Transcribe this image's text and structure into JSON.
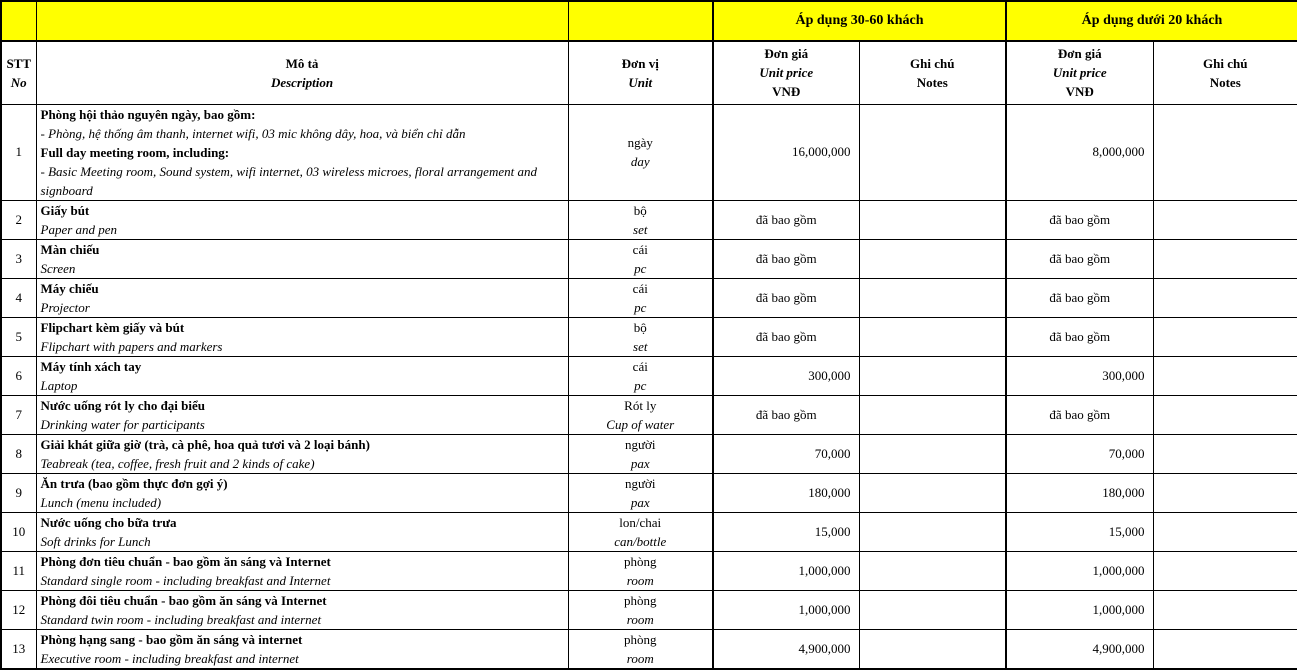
{
  "colors": {
    "header_bg": "#FFFF00",
    "border": "#000000",
    "text": "#000000"
  },
  "header": {
    "stt": "STT",
    "no": "No",
    "mo_ta": "Mô tả",
    "description": "Description",
    "don_vi": "Đơn vị",
    "unit": "Unit",
    "group_30_60": "Áp dụng  30-60 khách",
    "group_under_20": "Áp dụng dưới 20 khách",
    "don_gia": "Đơn giá",
    "unit_price": "Unit price",
    "vnd": "VNĐ",
    "ghi_chu": "Ghi chú",
    "notes": "Notes"
  },
  "rows": [
    {
      "no": "1",
      "desc_lines": [
        {
          "style": "bold",
          "text": "Phòng hội thảo nguyên ngày, bao gồm:"
        },
        {
          "style": "italic",
          "text": "- Phòng, hệ thống âm thanh, internet wifi, 03 mic không dây, hoa, và biển chỉ dẫn"
        },
        {
          "style": "bold",
          "text": "Full day meeting room, including:"
        },
        {
          "style": "italic",
          "text": "- Basic Meeting room, Sound system, wifi internet, 03 wireless microes, floral arrangement and signboard"
        }
      ],
      "unit_vi": "ngày",
      "unit_en": "day",
      "price1": "16,000,000",
      "note1": "",
      "price2": "8,000,000",
      "note2": ""
    },
    {
      "no": "2",
      "desc_lines": [
        {
          "style": "bold",
          "text": "Giấy bút"
        },
        {
          "style": "italic",
          "text": "Paper and pen"
        }
      ],
      "unit_vi": "bộ",
      "unit_en": "set",
      "price1": "đã bao gồm",
      "note1": "",
      "price2": "đã bao gồm",
      "note2": ""
    },
    {
      "no": "3",
      "desc_lines": [
        {
          "style": "bold",
          "text": "Màn chiếu"
        },
        {
          "style": "italic",
          "text": "Screen"
        }
      ],
      "unit_vi": "cái",
      "unit_en": "pc",
      "price1": "đã bao gồm",
      "note1": "",
      "price2": "đã bao gồm",
      "note2": ""
    },
    {
      "no": "4",
      "desc_lines": [
        {
          "style": "bold",
          "text": "Máy chiếu"
        },
        {
          "style": "italic",
          "text": "Projector"
        }
      ],
      "unit_vi": "cái",
      "unit_en": "pc",
      "price1": "đã bao gồm",
      "note1": "",
      "price2": "đã bao gồm",
      "note2": ""
    },
    {
      "no": "5",
      "desc_lines": [
        {
          "style": "bold",
          "text": "Flipchart kèm giấy và bút"
        },
        {
          "style": "italic",
          "text": "Flipchart with papers and markers"
        }
      ],
      "unit_vi": "bộ",
      "unit_en": "set",
      "price1": "đã bao gồm",
      "note1": "",
      "price2": "đã bao gồm",
      "note2": ""
    },
    {
      "no": "6",
      "desc_lines": [
        {
          "style": "bold",
          "text": "Máy tính xách tay"
        },
        {
          "style": "italic",
          "text": "Laptop"
        }
      ],
      "unit_vi": "cái",
      "unit_en": "pc",
      "price1": "300,000",
      "note1": "",
      "price2": "300,000",
      "note2": ""
    },
    {
      "no": "7",
      "desc_lines": [
        {
          "style": "bold",
          "text": "Nước uống rót ly cho đại biểu"
        },
        {
          "style": "italic",
          "text": "Drinking water for participants"
        }
      ],
      "unit_vi": "Rót ly",
      "unit_en": "Cup of water",
      "price1": "đã bao gồm",
      "note1": "",
      "price2": "đã bao gồm",
      "note2": ""
    },
    {
      "no": "8",
      "desc_lines": [
        {
          "style": "bold",
          "text": "Giải khát giữa giờ (trà, cà phê, hoa quả tươi và 2 loại bánh)"
        },
        {
          "style": "italic",
          "text": "Teabreak (tea, coffee, fresh fruit and 2 kinds of cake)"
        }
      ],
      "unit_vi": "người",
      "unit_en": "pax",
      "price1": "70,000",
      "note1": "",
      "price2": "70,000",
      "note2": ""
    },
    {
      "no": "9",
      "desc_lines": [
        {
          "style": "bold",
          "text": "Ăn trưa (bao gồm thực đơn gợi ý)"
        },
        {
          "style": "italic",
          "text": "Lunch (menu included)"
        }
      ],
      "unit_vi": "người",
      "unit_en": "pax",
      "price1": "180,000",
      "note1": "",
      "price2": "180,000",
      "note2": ""
    },
    {
      "no": "10",
      "desc_lines": [
        {
          "style": "bold",
          "text": "Nước uống cho bữa trưa"
        },
        {
          "style": "italic",
          "text": "Soft drinks for Lunch"
        }
      ],
      "unit_vi": "lon/chai",
      "unit_en": "can/bottle",
      "price1": "15,000",
      "note1": "",
      "price2": "15,000",
      "note2": ""
    },
    {
      "no": "11",
      "desc_lines": [
        {
          "style": "bold",
          "text": "Phòng đơn tiêu chuẩn - bao gồm ăn sáng và Internet"
        },
        {
          "style": "italic",
          "text": "Standard single room - including breakfast and Internet"
        }
      ],
      "unit_vi": "phòng",
      "unit_en": "room",
      "price1": "1,000,000",
      "note1": "",
      "price2": "1,000,000",
      "note2": ""
    },
    {
      "no": "12",
      "desc_lines": [
        {
          "style": "bold",
          "text": "Phòng đôi tiêu chuẩn - bao gồm ăn sáng và Internet"
        },
        {
          "style": "italic",
          "text": "Standard twin room - including breakfast and internet"
        }
      ],
      "unit_vi": "phòng",
      "unit_en": "room",
      "price1": "1,000,000",
      "note1": "",
      "price2": "1,000,000",
      "note2": ""
    },
    {
      "no": "13",
      "desc_lines": [
        {
          "style": "bold",
          "text": "Phòng hạng sang - bao gồm ăn sáng và internet"
        },
        {
          "style": "italic",
          "text": "Executive room - including breakfast and internet"
        }
      ],
      "unit_vi": "phòng",
      "unit_en": "room",
      "price1": "4,900,000",
      "note1": "",
      "price2": "4,900,000",
      "note2": ""
    }
  ]
}
